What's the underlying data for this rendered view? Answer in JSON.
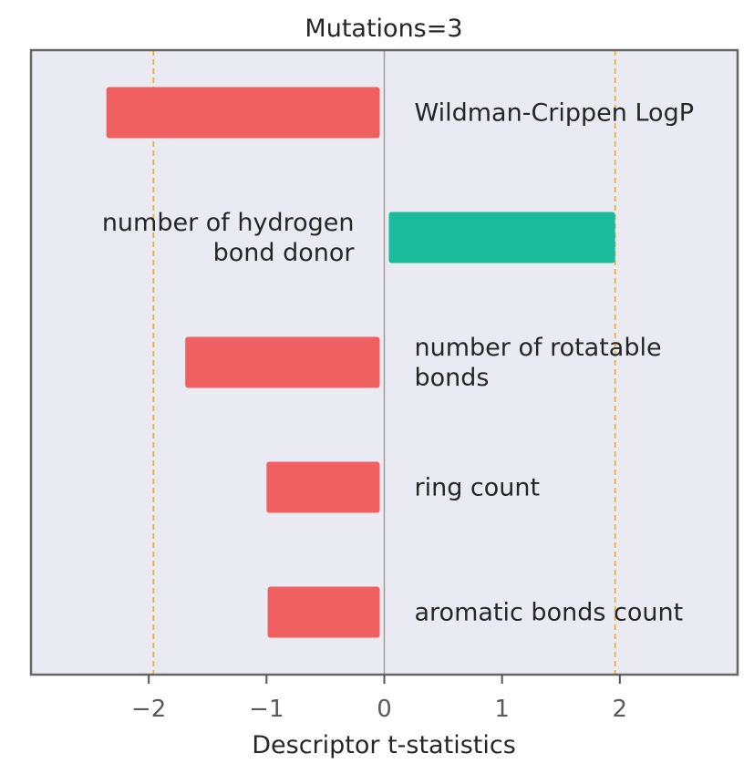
{
  "chart_data": {
    "type": "bar",
    "orientation": "horizontal",
    "title": "Mutations=3",
    "xlabel": "Descriptor t-statistics",
    "ylabel": "",
    "xlim": [
      -3.0,
      3.0
    ],
    "xticks": [
      -2,
      -1,
      0,
      1,
      2
    ],
    "xtick_labels": [
      "−2",
      "−1",
      "0",
      "1",
      "2"
    ],
    "threshold_lines": [
      -1.96,
      1.96
    ],
    "grid": false,
    "categories": [
      "Wildman-Crippen LogP",
      "number of hydrogen bond donor",
      "number of rotatable bonds",
      "ring count",
      "aromatic bonds count"
    ],
    "category_label_lines": [
      [
        "Wildman-Crippen LogP"
      ],
      [
        "number of hydrogen",
        "bond donor"
      ],
      [
        "number of rotatable",
        "bonds"
      ],
      [
        "ring count"
      ],
      [
        "aromatic bonds count"
      ]
    ],
    "values": [
      -2.36,
      1.96,
      -1.69,
      -1.0,
      -0.99
    ],
    "colors": {
      "negative": "#f06060",
      "positive": "#1abc9c",
      "threshold": "#f5a623",
      "plot_background": "#eaeaf2",
      "frame": "#666666",
      "zero_line": "#999999"
    }
  }
}
